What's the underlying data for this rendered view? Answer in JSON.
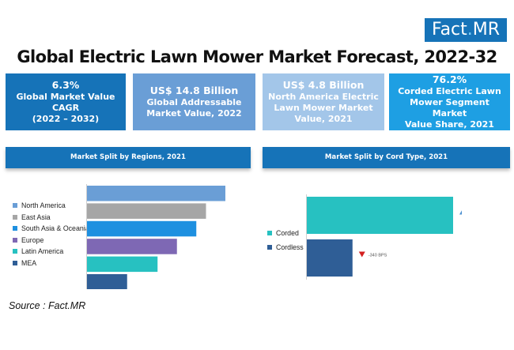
{
  "logo": {
    "text_a": "Fact",
    "text_dot": ".",
    "text_b": "MR"
  },
  "title": "Global Electric Lawn Mower Market Forecast, 2022-32",
  "stats": [
    {
      "line1": "6.3%",
      "line2": "Global Market Value",
      "line3": "CAGR",
      "line4": "(2022 – 2032)"
    },
    {
      "line1": "US$ 14.8 Billion",
      "line2": "Global Addressable",
      "line3": "Market Value, 2022"
    },
    {
      "line1": "US$ 4.8 Billion",
      "line2": "North America Electric",
      "line3": "Lawn Mower Market",
      "line4": "Value, 2021"
    },
    {
      "line1": "76.2%",
      "line2": "Corded Electric Lawn",
      "line3": "Mower Segment Market",
      "line4": "Value Share, 2021"
    }
  ],
  "colors": {
    "brand_blue": "#1673b8",
    "north_america": "#6a9ed6",
    "east_asia": "#a6a6a6",
    "south_asia_oceania": "#1e90e0",
    "europe": "#7e68b4",
    "latin_america": "#27c1c1",
    "mea": "#2f5e96",
    "corded": "#27c1c1",
    "cordless": "#2f5e96",
    "up_arrow": "#4a8fd0",
    "down_arrow": "#d32020"
  },
  "chart_data": [
    {
      "type": "bar",
      "orientation": "horizontal",
      "title": "Market Split by Regions, 2021",
      "categories": [
        "North America",
        "East Asia",
        "South Asia & Oceania",
        "Europe",
        "Latin America",
        "MEA"
      ],
      "values": [
        100,
        86,
        79,
        65,
        51,
        29
      ],
      "legend": "left"
    },
    {
      "type": "bar",
      "orientation": "horizontal",
      "title": "Market Split by Cord Type, 2021",
      "categories": [
        "Corded",
        "Cordless"
      ],
      "values": [
        76.2,
        23.8
      ],
      "annotations": [
        "+340 BPS",
        "-340 BPS"
      ],
      "legend": "left"
    }
  ],
  "source": "Source : Fact.MR"
}
